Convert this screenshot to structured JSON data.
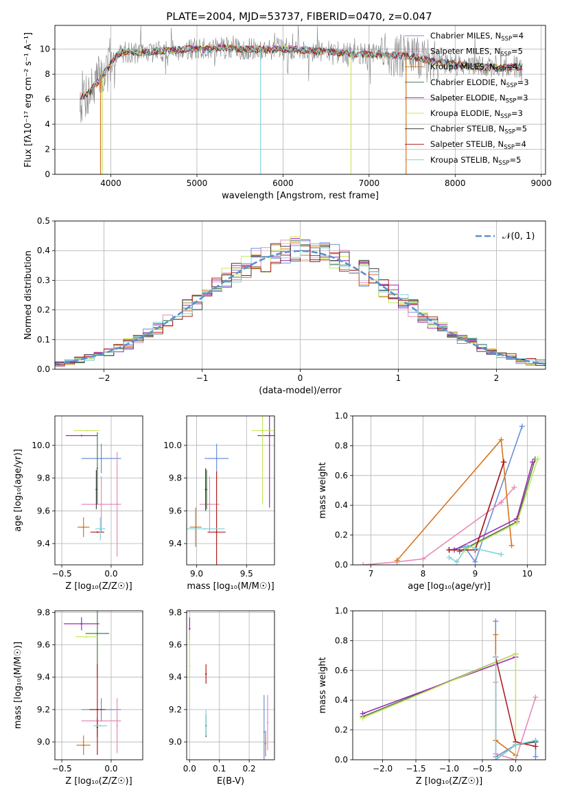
{
  "figure": {
    "title": "PLATE=2004, MJD=53737, FIBERID=0470, z=0.047"
  },
  "colors": {
    "chabrier_miles": "#6a8fd8",
    "salpeter_miles": "#e58ab8",
    "kroupa_miles": "#d6731e",
    "chabrier_elodie": "#4d7a4d",
    "salpeter_elodie": "#9b27b0",
    "kroupa_elodie": "#c8e65a",
    "chabrier_stelib": "#3d3d3d",
    "salpeter_stelib": "#b01c1c",
    "kroupa_stelib": "#7fd3d8",
    "data": "#808080",
    "gaussian": "#5b8fd0",
    "grid": "#b0b0b0"
  },
  "chart_data": [
    {
      "id": "spectrum",
      "type": "line",
      "title": "PLATE=2004, MJD=53737, FIBERID=0470, z=0.047",
      "xlabel": "wavelength [Angstrom, rest frame]",
      "ylabel": "Flux [fλ10⁻¹⁷ erg cm⁻² s⁻¹ A⁻¹]",
      "xlim": [
        3350,
        9050
      ],
      "ylim": [
        0,
        11.9
      ],
      "xticks": [
        "4000",
        "5000",
        "6000",
        "7000",
        "8000",
        "9000"
      ],
      "xtick_values": [
        4000,
        5000,
        6000,
        7000,
        8000,
        9000
      ],
      "yticks": [
        "0",
        "2",
        "4",
        "6",
        "8",
        "10"
      ],
      "ytick_values": [
        0,
        2,
        4,
        6,
        8,
        10
      ],
      "legend_position": "right",
      "legend": [
        {
          "label": "Chabrier MILES, N_SSP=4",
          "color_key": "chabrier_miles"
        },
        {
          "label": "Salpeter MILES, N_SSP=5",
          "color_key": "salpeter_miles"
        },
        {
          "label": "Kroupa MILES, N_SSP=4",
          "color_key": "kroupa_miles"
        },
        {
          "label": "Chabrier ELODIE, N_SSP=3",
          "color_key": "chabrier_elodie"
        },
        {
          "label": "Salpeter ELODIE, N_SSP=3",
          "color_key": "salpeter_elodie"
        },
        {
          "label": "Kroupa ELODIE, N_SSP=3",
          "color_key": "kroupa_elodie"
        },
        {
          "label": "Chabrier STELIB, N_SSP=5",
          "color_key": "chabrier_stelib"
        },
        {
          "label": "Salpeter STELIB, N_SSP=4",
          "color_key": "salpeter_stelib"
        },
        {
          "label": "Kroupa STELIB, N_SSP=5",
          "color_key": "kroupa_stelib"
        }
      ],
      "continuum": {
        "x": [
          3650,
          3750,
          3850,
          3950,
          4050,
          4150,
          4300,
          4500,
          4700,
          4900,
          5100,
          5300,
          5500,
          5700,
          5900,
          6100,
          6300,
          6500,
          6700,
          6900,
          7100,
          7300,
          7500,
          7700,
          7900,
          8100,
          8300,
          8500,
          8700,
          8800
        ],
        "y": [
          6.1,
          6.6,
          7.4,
          8.3,
          9.4,
          9.8,
          9.7,
          9.8,
          9.9,
          10.0,
          10.0,
          10.1,
          10.0,
          10.0,
          10.0,
          10.0,
          9.9,
          9.8,
          9.7,
          9.6,
          9.6,
          9.5,
          9.4,
          9.1,
          8.9,
          8.7,
          8.6,
          8.5,
          8.6,
          8.6
        ]
      },
      "dropouts": [
        {
          "x": 3880,
          "series": "kroupa_miles",
          "y": 0
        },
        {
          "x": 3900,
          "series": "kroupa_elodie",
          "y": 0
        },
        {
          "x": 5740,
          "series": "kroupa_stelib",
          "y": 0
        },
        {
          "x": 6790,
          "series": "kroupa_elodie",
          "y": 0
        },
        {
          "x": 7430,
          "series": "kroupa_miles",
          "y": 0
        }
      ]
    },
    {
      "id": "residuals",
      "type": "histogram",
      "xlabel": "(data-model)/error",
      "ylabel": "Normed distribution",
      "xlim": [
        -2.5,
        2.5
      ],
      "ylim": [
        0,
        0.5
      ],
      "xticks": [
        "−2",
        "−1",
        "0",
        "1",
        "2"
      ],
      "xtick_values": [
        -2,
        -1,
        0,
        1,
        2
      ],
      "yticks": [
        "0.0",
        "0.1",
        "0.2",
        "0.3",
        "0.4",
        "0.5"
      ],
      "ytick_values": [
        0,
        0.1,
        0.2,
        0.3,
        0.4,
        0.5
      ],
      "bin_width": 0.1,
      "bins_start": -2.5,
      "legend_position": "top-right",
      "legend": [
        {
          "label": "𝒩(0, 1)",
          "color_key": "gaussian"
        }
      ]
    },
    {
      "id": "age_vs_Z",
      "type": "errorbar",
      "xlabel": "Z [log₁₀(Z/Z☉)]",
      "ylabel": "age [log₁₀(age/yr)]",
      "xlim": [
        -0.57,
        0.32
      ],
      "ylim": [
        9.27,
        10.18
      ],
      "xticks": [
        "−0.5",
        "0.0"
      ],
      "xtick_values": [
        -0.5,
        0.0
      ],
      "yticks": [
        "9.4",
        "9.6",
        "9.8",
        "10.0"
      ],
      "ytick_values": [
        9.4,
        9.6,
        9.8,
        10.0
      ],
      "points": [
        {
          "series": "chabrier_miles",
          "x": -0.1,
          "y": 9.92,
          "xerr": 0.2,
          "yerr": 0.09
        },
        {
          "series": "salpeter_miles",
          "x": -0.1,
          "y": 9.64,
          "xerr": 0.2,
          "yerr": 0.17
        },
        {
          "series": "salpeter_miles",
          "x": 0.06,
          "y": 9.64,
          "xerr": 0.0,
          "yerr": 0.32
        },
        {
          "series": "kroupa_miles",
          "x": -0.28,
          "y": 9.5,
          "xerr": 0.06,
          "yerr": 0.06
        },
        {
          "series": "chabrier_elodie",
          "x": -0.14,
          "y": 9.86,
          "xerr": 0.0,
          "yerr": 0.22
        },
        {
          "series": "salpeter_elodie",
          "x": -0.3,
          "y": 10.06,
          "xerr": 0.16,
          "yerr": 0.0
        },
        {
          "series": "kroupa_elodie",
          "x": -0.25,
          "y": 10.09,
          "xerr": 0.13,
          "yerr": 0.0
        },
        {
          "series": "chabrier_stelib",
          "x": -0.15,
          "y": 9.73,
          "xerr": 0.0,
          "yerr": 0.12
        },
        {
          "series": "salpeter_stelib",
          "x": -0.14,
          "y": 9.47,
          "xerr": 0.07,
          "yerr": 0.0
        },
        {
          "series": "kroupa_stelib",
          "x": -0.11,
          "y": 9.49,
          "xerr": 0.05,
          "yerr": 0.07
        }
      ]
    },
    {
      "id": "age_vs_mass",
      "type": "errorbar",
      "xlabel": "mass [log₁₀(M/M☉)]",
      "ylabel": "",
      "xlim": [
        8.9,
        9.78
      ],
      "ylim": [
        9.27,
        10.18
      ],
      "xticks": [
        "9.0",
        "9.5"
      ],
      "xtick_values": [
        9.0,
        9.5
      ],
      "yticks": [
        "9.4",
        "9.6",
        "9.8",
        "10.0"
      ],
      "ytick_values": [
        9.4,
        9.6,
        9.8,
        10.0
      ],
      "points": [
        {
          "series": "chabrier_miles",
          "x": 9.2,
          "y": 9.92,
          "xerr": 0.12,
          "yerr": 0.09
        },
        {
          "series": "salpeter_miles",
          "x": 9.13,
          "y": 9.64,
          "xerr": 0.1,
          "yerr": 0.17
        },
        {
          "series": "kroupa_miles",
          "x": 8.99,
          "y": 9.5,
          "xerr": 0.06,
          "yerr": 0.12
        },
        {
          "series": "chabrier_elodie",
          "x": 9.1,
          "y": 9.73,
          "xerr": 0.0,
          "yerr": 0.12
        },
        {
          "series": "salpeter_elodie",
          "x": 9.73,
          "y": 10.06,
          "xerr": 0.12,
          "yerr": 0.44
        },
        {
          "series": "kroupa_elodie",
          "x": 9.66,
          "y": 10.09,
          "xerr": 0.11,
          "yerr": 0.45
        },
        {
          "series": "chabrier_stelib",
          "x": 9.09,
          "y": 9.73,
          "xerr": 0.0,
          "yerr": 0.13
        },
        {
          "series": "salpeter_stelib",
          "x": 9.2,
          "y": 9.47,
          "xerr": 0.09,
          "yerr": 0.37
        },
        {
          "series": "kroupa_stelib",
          "x": 9.08,
          "y": 9.49,
          "xerr": 0.2,
          "yerr": 0.0
        }
      ]
    },
    {
      "id": "weight_vs_age",
      "type": "line",
      "xlabel": "age [log₁₀(age/yr)]",
      "ylabel": "mass weight",
      "xlim": [
        6.65,
        10.35
      ],
      "ylim": [
        0,
        1.0
      ],
      "xticks": [
        "7",
        "8",
        "9",
        "10"
      ],
      "xtick_values": [
        7,
        8,
        9,
        10
      ],
      "yticks": [
        "0.0",
        "0.2",
        "0.4",
        "0.6",
        "0.8",
        "1.0"
      ],
      "ytick_values": [
        0,
        0.2,
        0.4,
        0.6,
        0.8,
        1.0
      ],
      "series": [
        {
          "name": "Chabrier MILES",
          "color_key": "chabrier_miles",
          "x": [
            8.5,
            8.8,
            9.0,
            9.9
          ],
          "y": [
            0.1,
            0.12,
            0.02,
            0.93
          ]
        },
        {
          "name": "Salpeter MILES",
          "color_key": "salpeter_miles",
          "x": [
            6.85,
            7.5,
            8.0,
            9.5,
            9.75
          ],
          "y": [
            0.0,
            0.02,
            0.04,
            0.42,
            0.52
          ]
        },
        {
          "name": "Kroupa MILES",
          "color_key": "kroupa_miles",
          "x": [
            7.5,
            9.5,
            9.7
          ],
          "y": [
            0.03,
            0.84,
            0.13
          ]
        },
        {
          "name": "Chabrier ELODIE",
          "color_key": "chabrier_elodie",
          "x": [
            8.7,
            9.8,
            10.15
          ],
          "y": [
            0.09,
            0.29,
            0.71
          ]
        },
        {
          "name": "Salpeter ELODIE",
          "color_key": "salpeter_elodie",
          "x": [
            8.6,
            9.8,
            10.1
          ],
          "y": [
            0.1,
            0.31,
            0.69
          ]
        },
        {
          "name": "Kroupa ELODIE",
          "color_key": "kroupa_elodie",
          "x": [
            8.8,
            9.8,
            10.2
          ],
          "y": [
            0.1,
            0.28,
            0.71
          ]
        },
        {
          "name": "Chabrier STELIB",
          "color_key": "chabrier_stelib",
          "x": [
            8.5,
            9.0,
            9.55
          ],
          "y": [
            0.1,
            0.1,
            0.69
          ]
        },
        {
          "name": "Salpeter STELIB",
          "color_key": "salpeter_stelib",
          "x": [
            8.5,
            9.0,
            9.55
          ],
          "y": [
            0.1,
            0.1,
            0.69
          ]
        },
        {
          "name": "Kroupa STELIB",
          "color_key": "kroupa_stelib",
          "x": [
            8.5,
            8.65,
            8.85,
            9.0,
            9.5
          ],
          "y": [
            0.05,
            0.02,
            0.13,
            0.11,
            0.07
          ]
        }
      ]
    },
    {
      "id": "mass_vs_Z",
      "type": "errorbar",
      "xlabel": "Z [log₁₀(Z/Z☉)]",
      "ylabel": "mass [log₁₀(M/M☉)]",
      "xlim": [
        -0.57,
        0.32
      ],
      "ylim": [
        8.89,
        9.81
      ],
      "xticks": [
        "−0.5",
        "0.0"
      ],
      "xtick_values": [
        -0.5,
        0.0
      ],
      "yticks": [
        "9.0",
        "9.2",
        "9.4",
        "9.6",
        "9.8"
      ],
      "ytick_values": [
        9.0,
        9.2,
        9.4,
        9.6,
        9.8
      ],
      "points": [
        {
          "series": "chabrier_miles",
          "x": -0.1,
          "y": 9.2,
          "xerr": 0.2,
          "yerr": 0.07
        },
        {
          "series": "salpeter_miles",
          "x": -0.1,
          "y": 9.13,
          "xerr": 0.2,
          "yerr": 0.0
        },
        {
          "series": "salpeter_miles",
          "x": 0.06,
          "y": 9.1,
          "xerr": 0.0,
          "yerr": 0.17
        },
        {
          "series": "kroupa_miles",
          "x": -0.28,
          "y": 8.98,
          "xerr": 0.07,
          "yerr": 0.06
        },
        {
          "series": "chabrier_elodie",
          "x": -0.14,
          "y": 9.67,
          "xerr": 0.12,
          "yerr": 0.27
        },
        {
          "series": "salpeter_elodie",
          "x": -0.3,
          "y": 9.73,
          "xerr": 0.18,
          "yerr": 0.04
        },
        {
          "series": "kroupa_elodie",
          "x": -0.25,
          "y": 9.65,
          "xerr": 0.11,
          "yerr": 0.0
        },
        {
          "series": "chabrier_stelib",
          "x": -0.14,
          "y": 9.09,
          "xerr": 0.0,
          "yerr": 0.06
        },
        {
          "series": "salpeter_stelib",
          "x": -0.14,
          "y": 9.2,
          "xerr": 0.08,
          "yerr": 0.28
        },
        {
          "series": "kroupa_stelib",
          "x": -0.11,
          "y": 9.1,
          "xerr": 0.07,
          "yerr": 0.0
        }
      ]
    },
    {
      "id": "mass_vs_ebv",
      "type": "errorbar",
      "xlabel": "E(B-V)",
      "ylabel": "",
      "xlim": [
        -0.01,
        0.285
      ],
      "ylim": [
        8.89,
        9.81
      ],
      "xticks": [
        "0.0",
        "0.1",
        "0.2"
      ],
      "xtick_values": [
        0.0,
        0.1,
        0.2
      ],
      "yticks": [
        "9.0",
        "9.2",
        "9.4",
        "9.6",
        "9.8"
      ],
      "ytick_values": [
        9.0,
        9.2,
        9.4,
        9.6,
        9.8
      ],
      "points": [
        {
          "series": "salpeter_elodie",
          "x": 0.0,
          "y": 9.7,
          "xerr": 0.0,
          "yerr": 0.07
        },
        {
          "series": "kroupa_elodie",
          "x": 0.0,
          "y": 9.47,
          "xerr": 0.0,
          "yerr": 0.22
        },
        {
          "series": "chabrier_stelib",
          "x": 0.055,
          "y": 9.1,
          "xerr": 0.0,
          "yerr": 0.07
        },
        {
          "series": "salpeter_stelib",
          "x": 0.055,
          "y": 9.42,
          "xerr": 0.0,
          "yerr": 0.06
        },
        {
          "series": "kroupa_stelib",
          "x": 0.055,
          "y": 9.12,
          "xerr": 0.0,
          "yerr": 0.08
        },
        {
          "series": "chabrier_miles",
          "x": 0.25,
          "y": 9.06,
          "xerr": 0.0,
          "yerr": 0.23
        },
        {
          "series": "kroupa_miles",
          "x": 0.255,
          "y": 8.99,
          "xerr": 0.0,
          "yerr": 0.08
        },
        {
          "series": "salpeter_miles",
          "x": 0.262,
          "y": 9.12,
          "xerr": 0.0,
          "yerr": 0.17
        }
      ]
    },
    {
      "id": "weight_vs_Z",
      "type": "line",
      "xlabel": "Z [log₁₀(Z/Z☉)]",
      "ylabel": "mass weight",
      "xlim": [
        -2.45,
        0.45
      ],
      "ylim": [
        0,
        1.0
      ],
      "xticks": [
        "−2.0",
        "−1.5",
        "−1.0",
        "−0.5",
        "0.0"
      ],
      "xtick_values": [
        -2.0,
        -1.5,
        -1.0,
        -0.5,
        0.0
      ],
      "yticks": [
        "0.0",
        "0.2",
        "0.4",
        "0.6",
        "0.8",
        "1.0"
      ],
      "ytick_values": [
        0,
        0.2,
        0.4,
        0.6,
        0.8,
        1.0
      ],
      "series": [
        {
          "name": "Chabrier MILES",
          "color_key": "chabrier_miles",
          "x": [
            -0.3,
            -0.3,
            0.0,
            0.3,
            0.3
          ],
          "y": [
            0.93,
            0.02,
            0.1,
            0.13,
            0.02
          ]
        },
        {
          "name": "Salpeter MILES",
          "color_key": "salpeter_miles",
          "x": [
            -0.3,
            -0.3,
            0.0,
            0.3
          ],
          "y": [
            0.52,
            0.04,
            0.0,
            0.42
          ]
        },
        {
          "name": "Kroupa MILES",
          "color_key": "kroupa_miles",
          "x": [
            -0.3,
            -0.3,
            0.0
          ],
          "y": [
            0.84,
            0.13,
            0.03
          ]
        },
        {
          "name": "Chabrier ELODIE",
          "color_key": "chabrier_elodie",
          "x": [
            -2.3,
            0.0
          ],
          "y": [
            0.29,
            0.71
          ]
        },
        {
          "name": "Salpeter ELODIE",
          "color_key": "salpeter_elodie",
          "x": [
            -2.3,
            0.0
          ],
          "y": [
            0.31,
            0.69
          ]
        },
        {
          "name": "Kroupa ELODIE",
          "color_key": "kroupa_elodie",
          "x": [
            -2.3,
            0.0,
            0.0
          ],
          "y": [
            0.28,
            0.71,
            0.0
          ]
        },
        {
          "name": "Chabrier STELIB",
          "color_key": "chabrier_stelib",
          "x": [
            -0.3,
            -0.3,
            0.0,
            0.3
          ],
          "y": [
            0.69,
            0.0,
            0.1,
            0.12
          ]
        },
        {
          "name": "Salpeter STELIB",
          "color_key": "salpeter_stelib",
          "x": [
            -0.3,
            0.0,
            0.3
          ],
          "y": [
            0.69,
            0.12,
            0.09
          ]
        },
        {
          "name": "Kroupa STELIB",
          "color_key": "kroupa_stelib",
          "x": [
            -0.3,
            -0.3,
            0.0,
            0.3
          ],
          "y": [
            0.69,
            0.0,
            0.1,
            0.13
          ]
        }
      ]
    }
  ]
}
